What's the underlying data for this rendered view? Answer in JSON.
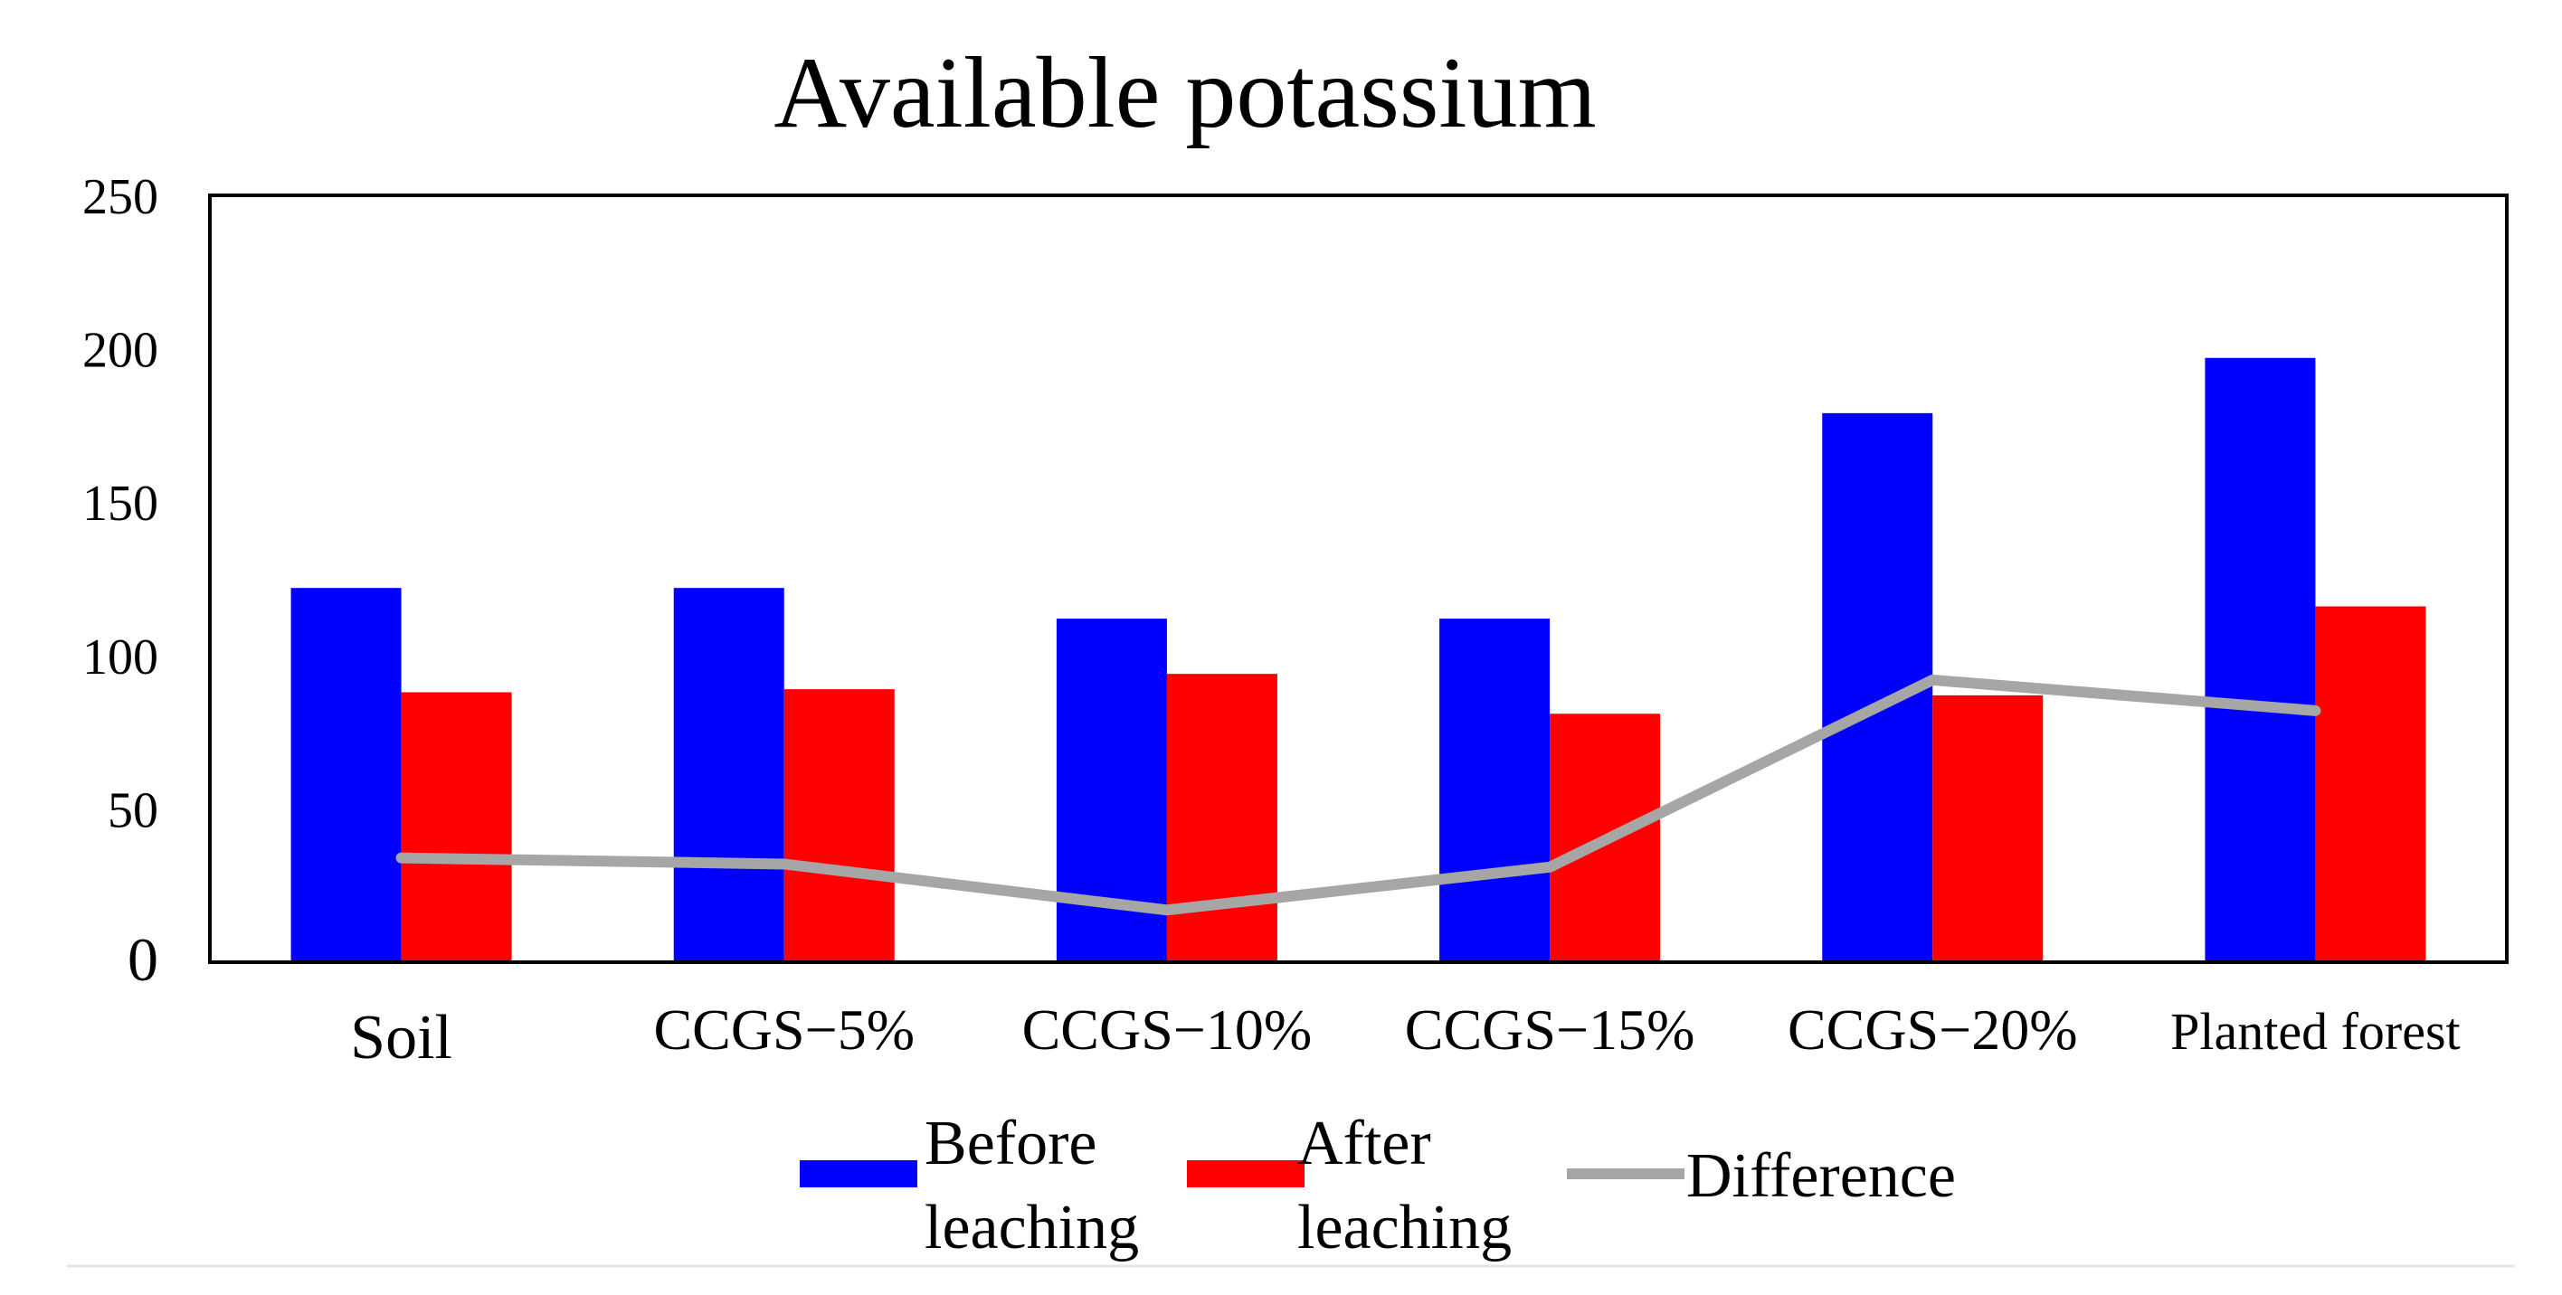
{
  "chart_data": {
    "type": "bar",
    "title": "Available potassium",
    "xlabel": "",
    "ylabel": "",
    "ylim": [
      0,
      250
    ],
    "yticks": [
      0,
      50,
      100,
      150,
      200,
      250
    ],
    "categories": [
      "Soil",
      "CCGS−5%",
      "CCGS−10%",
      "CCGS−15%",
      "CCGS−20%",
      "Planted forest"
    ],
    "series": [
      {
        "name": "Before leaching",
        "legend_lines": [
          "Before",
          "leaching"
        ],
        "type": "bar",
        "color": "#0000ff",
        "values": [
          122,
          122,
          112,
          112,
          179,
          197
        ]
      },
      {
        "name": "After leaching",
        "legend_lines": [
          "After",
          "leaching"
        ],
        "type": "bar",
        "color": "#ff0000",
        "values": [
          88,
          89,
          94,
          81,
          87,
          116
        ]
      },
      {
        "name": "Difference",
        "legend_lines": [
          "Difference"
        ],
        "type": "line",
        "color": "#a6a6a6",
        "values": [
          34,
          32,
          17,
          31,
          92,
          82
        ]
      }
    ],
    "grid": false,
    "legend_position": "bottom"
  }
}
